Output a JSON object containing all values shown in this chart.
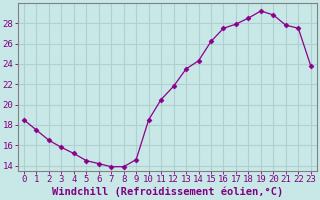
{
  "x": [
    0,
    1,
    2,
    3,
    4,
    5,
    6,
    7,
    8,
    9,
    10,
    11,
    12,
    13,
    14,
    15,
    16,
    17,
    18,
    19,
    20,
    21,
    22,
    23
  ],
  "y": [
    18.5,
    17.5,
    16.5,
    15.8,
    15.2,
    14.5,
    14.2,
    13.9,
    13.9,
    14.6,
    18.5,
    20.5,
    21.8,
    23.5,
    24.3,
    26.2,
    27.5,
    27.9,
    28.5,
    29.2,
    28.8,
    27.8,
    27.5,
    23.8
  ],
  "line_color": "#8b008b",
  "marker": "D",
  "marker_size": 2.5,
  "bg_color": "#c8e8e8",
  "grid_color": "#b0d0d0",
  "xlabel": "Windchill (Refroidissement éolien,°C)",
  "ylim": [
    13.5,
    30.0
  ],
  "xlim": [
    -0.5,
    23.5
  ],
  "yticks": [
    14,
    16,
    18,
    20,
    22,
    24,
    26,
    28
  ],
  "xticks": [
    0,
    1,
    2,
    3,
    4,
    5,
    6,
    7,
    8,
    9,
    10,
    11,
    12,
    13,
    14,
    15,
    16,
    17,
    18,
    19,
    20,
    21,
    22,
    23
  ],
  "xtick_labels": [
    "0",
    "1",
    "2",
    "3",
    "4",
    "5",
    "6",
    "7",
    "8",
    "9",
    "10",
    "11",
    "12",
    "13",
    "14",
    "15",
    "16",
    "17",
    "18",
    "19",
    "20",
    "21",
    "22",
    "23"
  ],
  "axis_color": "#808080",
  "tick_color": "#800080",
  "label_color": "#800080",
  "font_size": 6.5,
  "label_font_size": 7.5
}
